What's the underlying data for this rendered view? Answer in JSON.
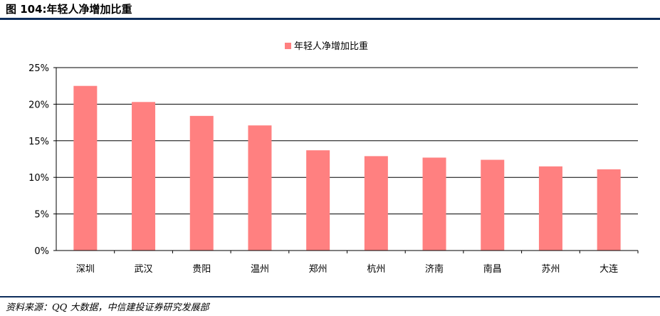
{
  "figure": {
    "title": "图 104:年轻人净增加比重",
    "source": "资料来源：QQ 大数据，中信建投证券研究发展部"
  },
  "colors": {
    "bar": "#ff8080",
    "rule": "#0e2e5c",
    "grid": "#000000"
  },
  "chart_data": {
    "type": "bar",
    "categories": [
      "深圳",
      "武汉",
      "贵阳",
      "温州",
      "郑州",
      "杭州",
      "济南",
      "南昌",
      "苏州",
      "大连"
    ],
    "series": [
      {
        "name": "年轻人净增加比重",
        "values": [
          22.5,
          20.3,
          18.4,
          17.1,
          13.7,
          12.9,
          12.7,
          12.4,
          11.5,
          11.1
        ]
      }
    ],
    "ylim": [
      0,
      25
    ],
    "yticks": [
      0,
      5,
      10,
      15,
      20,
      25
    ],
    "ytick_format": "percent",
    "grid": true,
    "legend": "top-center"
  }
}
